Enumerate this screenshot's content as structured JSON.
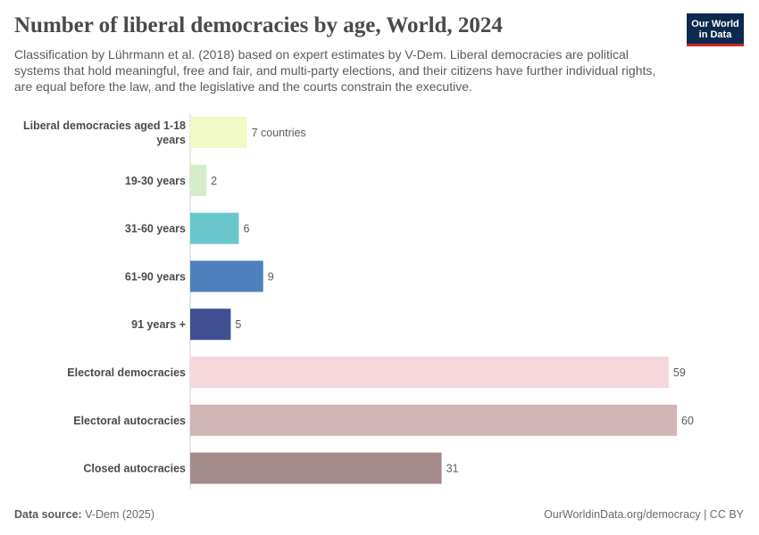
{
  "header": {
    "title": "Number of liberal democracies by age, World, 2024",
    "subtitle": "Classification by Lührmann et al. (2018) based on expert estimates by V-Dem. Liberal democracies are political systems that hold meaningful, free and fair, and multi-party elections, and their citizens have further individual rights, are equal before the law, and the legislative and the courts constrain the executive."
  },
  "logo": {
    "line1": "Our World",
    "line2": "in Data",
    "bg_color": "#0c2a4f",
    "accent_color": "#ce261e"
  },
  "chart_data": {
    "type": "bar",
    "orientation": "horizontal",
    "categories": [
      "Liberal democracies aged 1-18 years",
      "19-30 years",
      "31-60 years",
      "61-90 years",
      "91 years +",
      "Electoral democracies",
      "Electoral autocracies",
      "Closed autocracies"
    ],
    "values": [
      7,
      2,
      6,
      9,
      5,
      59,
      60,
      31
    ],
    "value_labels": [
      "7 countries",
      "2",
      "6",
      "9",
      "5",
      "59",
      "60",
      "31"
    ],
    "colors": [
      "#f1f9c4",
      "#d4ecc8",
      "#68c6cc",
      "#4d80bd",
      "#3f4f92",
      "#f6d8dc",
      "#d2b5b7",
      "#a38b8c"
    ],
    "xlim": [
      0,
      60
    ],
    "grid": false
  },
  "footer": {
    "source_label": "Data source:",
    "source_text": "V-Dem (2025)",
    "link_text": "OurWorldinData.org/democracy | CC BY"
  }
}
